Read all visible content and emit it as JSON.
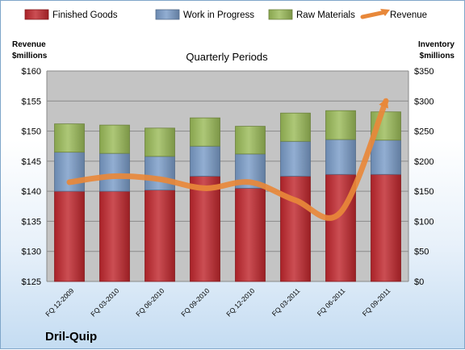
{
  "chart_data": {
    "type": "bar",
    "subtype": "stacked-bar-with-line",
    "title": "Quarterly Periods",
    "brand": "Dril-Quip",
    "categories": [
      "FQ 12-2009",
      "FQ 03-2010",
      "FQ 06-2010",
      "FQ 09-2010",
      "FQ 12-2010",
      "FQ 03-2011",
      "FQ 06-2011",
      "FQ 09-2011"
    ],
    "series": [
      {
        "name": "Finished Goods",
        "axis": "right",
        "color": "#c0272d",
        "values": [
          150,
          150,
          152,
          175,
          155,
          175,
          178,
          178
        ]
      },
      {
        "name": "Work in Progress",
        "axis": "right",
        "color": "#7a9cc8",
        "values": [
          65,
          63,
          56,
          50,
          57,
          58,
          58,
          57
        ]
      },
      {
        "name": "Raw Materials",
        "axis": "right",
        "color": "#9bbb59",
        "values": [
          47,
          47,
          47,
          47,
          46,
          47,
          48,
          47
        ]
      },
      {
        "name": "Revenue",
        "axis": "left",
        "type": "line",
        "color": "#e8883a",
        "values": [
          141.5,
          142.5,
          142.0,
          140.5,
          141.5,
          138.5,
          136.5,
          155.0
        ]
      }
    ],
    "left_axis": {
      "label_line1": "Revenue",
      "label_line2": "$millions",
      "min": 125,
      "max": 160,
      "step": 5,
      "ticks": [
        "$125",
        "$130",
        "$135",
        "$140",
        "$145",
        "$150",
        "$155",
        "$160"
      ]
    },
    "right_axis": {
      "label_line1": "Inventory",
      "label_line2": "$millions",
      "min": 0,
      "max": 350,
      "step": 50,
      "ticks": [
        "$0",
        "$50",
        "$100",
        "$150",
        "$200",
        "$250",
        "$300",
        "$350"
      ]
    },
    "legend_position": "top",
    "grid": true
  }
}
